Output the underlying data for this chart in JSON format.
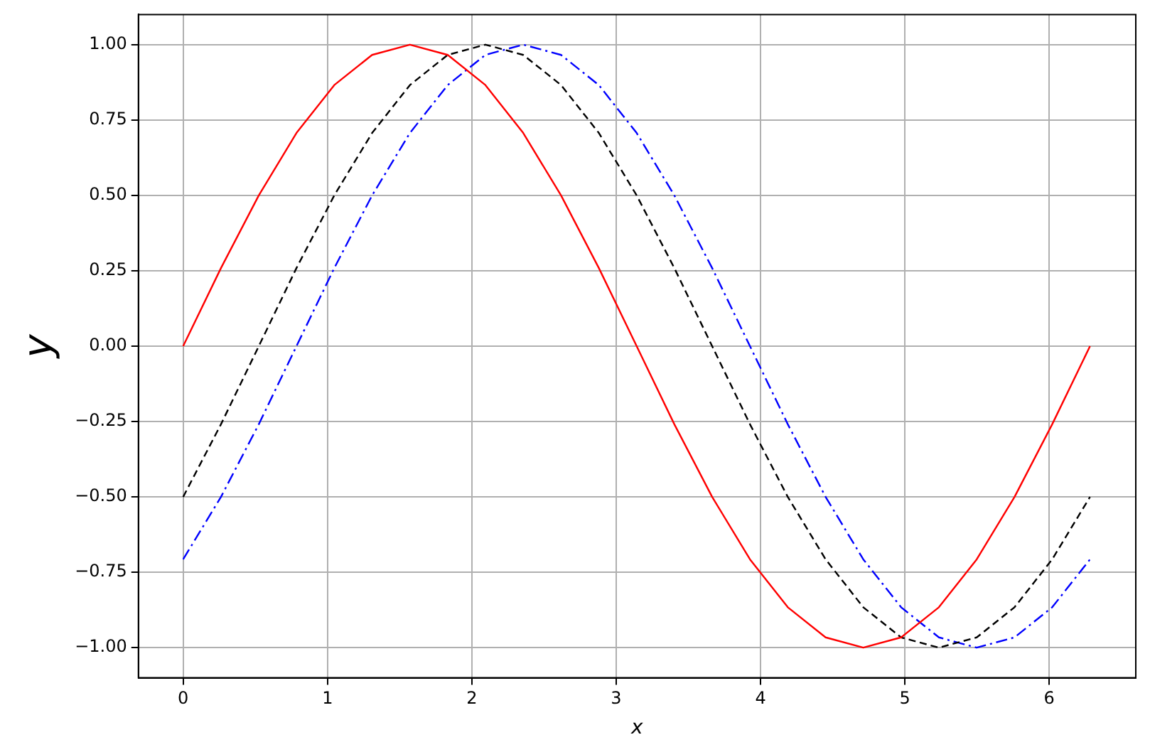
{
  "chart_data": {
    "type": "line",
    "xlabel": "x",
    "ylabel": "y",
    "x": [
      0,
      0.262,
      0.524,
      0.785,
      1.047,
      1.309,
      1.571,
      1.833,
      2.094,
      2.356,
      2.618,
      2.88,
      3.142,
      3.403,
      3.665,
      3.927,
      4.189,
      4.451,
      4.712,
      4.974,
      5.236,
      5.498,
      5.76,
      6.021,
      6.283
    ],
    "series": [
      {
        "color": "#ff0000",
        "line_style": "solid",
        "values": [
          0,
          0.259,
          0.5,
          0.707,
          0.866,
          0.966,
          1,
          0.966,
          0.866,
          0.707,
          0.5,
          0.259,
          0,
          -0.259,
          -0.5,
          -0.707,
          -0.866,
          -0.966,
          -1,
          -0.966,
          -0.866,
          -0.707,
          -0.5,
          -0.259,
          0
        ]
      },
      {
        "color": "#000000",
        "line_style": "dashed",
        "values": [
          -0.5,
          -0.259,
          0,
          0.259,
          0.5,
          0.707,
          0.866,
          0.966,
          1,
          0.966,
          0.866,
          0.707,
          0.5,
          0.259,
          0,
          -0.259,
          -0.5,
          -0.707,
          -0.866,
          -0.966,
          -1,
          -0.966,
          -0.866,
          -0.707,
          -0.5
        ]
      },
      {
        "color": "#0000ff",
        "line_style": "dashdot",
        "values": [
          -0.707,
          -0.5,
          -0.259,
          0,
          0.259,
          0.5,
          0.707,
          0.866,
          0.966,
          1,
          0.966,
          0.866,
          0.707,
          0.5,
          0.259,
          0,
          -0.259,
          -0.5,
          -0.707,
          -0.866,
          -0.966,
          -1,
          -0.966,
          -0.866,
          -0.707
        ]
      }
    ],
    "xlim": [
      -0.31,
      6.6
    ],
    "ylim": [
      -1.1,
      1.1
    ],
    "xticks": [
      0,
      1,
      2,
      3,
      4,
      5,
      6
    ],
    "yticks": [
      {
        "value": -1,
        "label": "−1.00"
      },
      {
        "value": -0.75,
        "label": "−0.75"
      },
      {
        "value": -0.5,
        "label": "−0.50"
      },
      {
        "value": -0.25,
        "label": "−0.25"
      },
      {
        "value": 0,
        "label": "0.00"
      },
      {
        "value": 0.25,
        "label": "0.25"
      },
      {
        "value": 0.5,
        "label": "0.50"
      },
      {
        "value": 0.75,
        "label": "0.75"
      },
      {
        "value": 1,
        "label": "1.00"
      }
    ],
    "grid": true,
    "legend": false,
    "marker": "none"
  }
}
